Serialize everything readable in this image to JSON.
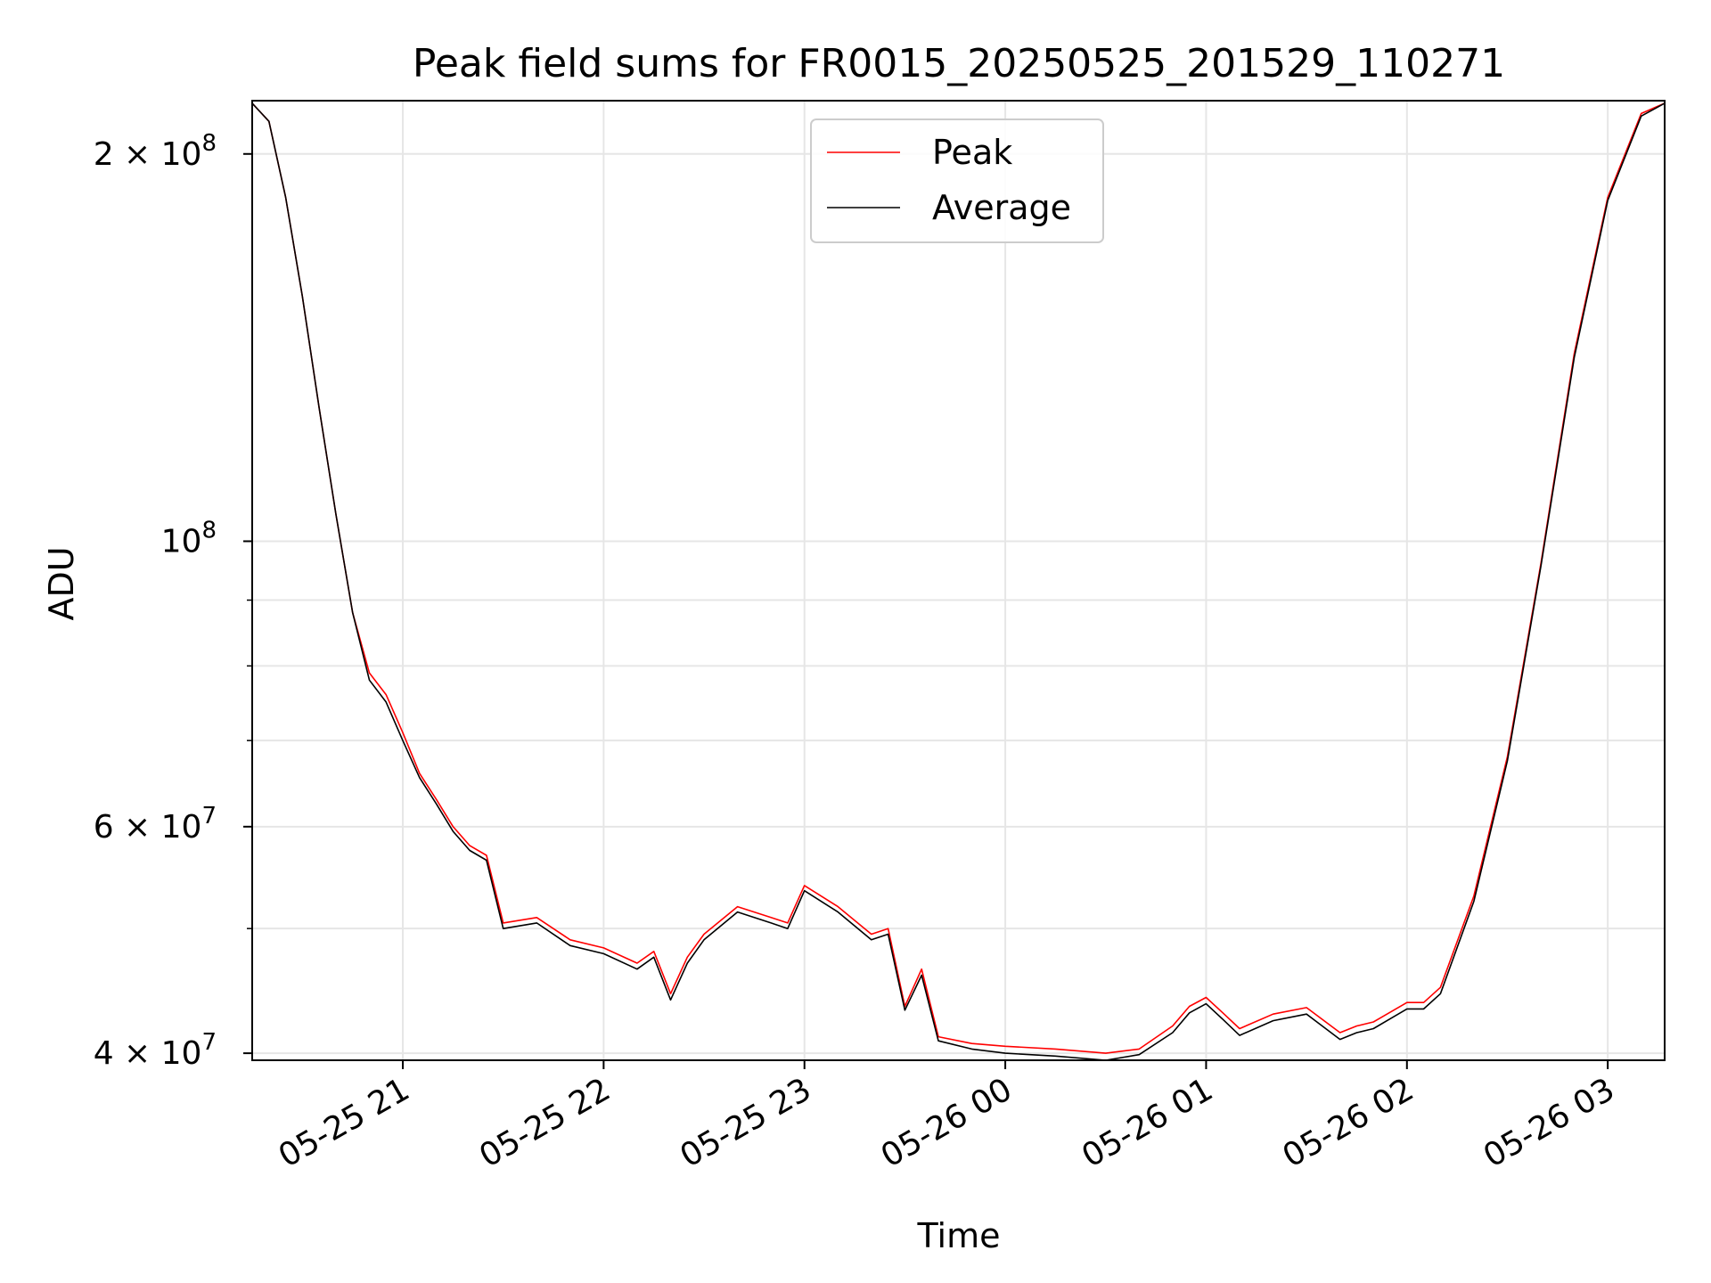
{
  "chart_data": {
    "type": "line",
    "title": "Peak field sums for FR0015_20250525_201529_110271",
    "xlabel": "Time",
    "ylabel": "ADU",
    "yscale": "log",
    "grid": true,
    "legend_position": "top-center",
    "xlim": [
      "2025-05-25T20:15",
      "2025-05-26T03:17"
    ],
    "ylim": [
      39500000,
      220000000
    ],
    "x_ticks": [
      {
        "time": "2025-05-25T21:00",
        "label": "05-25 21"
      },
      {
        "time": "2025-05-25T22:00",
        "label": "05-25 22"
      },
      {
        "time": "2025-05-25T23:00",
        "label": "05-25 23"
      },
      {
        "time": "2025-05-26T00:00",
        "label": "05-26 00"
      },
      {
        "time": "2025-05-26T01:00",
        "label": "05-26 01"
      },
      {
        "time": "2025-05-26T02:00",
        "label": "05-26 02"
      },
      {
        "time": "2025-05-26T03:00",
        "label": "05-26 03"
      }
    ],
    "y_major_ticks": [
      {
        "value": 40000000,
        "base": "4 × 10",
        "exp": "7"
      },
      {
        "value": 60000000,
        "base": "6 × 10",
        "exp": "7"
      },
      {
        "value": 100000000,
        "base": "10",
        "exp": "8"
      },
      {
        "value": 200000000,
        "base": "2 × 10",
        "exp": "8"
      }
    ],
    "y_minor_grid": [
      50000000,
      70000000,
      80000000,
      90000000
    ],
    "series": [
      {
        "name": "Peak",
        "color": "#ff0000",
        "x": [
          "2025-05-25T20:15",
          "2025-05-25T20:20",
          "2025-05-25T20:25",
          "2025-05-25T20:30",
          "2025-05-25T20:35",
          "2025-05-25T20:40",
          "2025-05-25T20:45",
          "2025-05-25T20:50",
          "2025-05-25T20:55",
          "2025-05-25T21:00",
          "2025-05-25T21:05",
          "2025-05-25T21:10",
          "2025-05-25T21:15",
          "2025-05-25T21:20",
          "2025-05-25T21:25",
          "2025-05-25T21:30",
          "2025-05-25T21:40",
          "2025-05-25T21:50",
          "2025-05-25T22:00",
          "2025-05-25T22:10",
          "2025-05-25T22:15",
          "2025-05-25T22:20",
          "2025-05-25T22:25",
          "2025-05-25T22:30",
          "2025-05-25T22:40",
          "2025-05-25T22:50",
          "2025-05-25T22:55",
          "2025-05-25T23:00",
          "2025-05-25T23:10",
          "2025-05-25T23:20",
          "2025-05-25T23:25",
          "2025-05-25T23:30",
          "2025-05-25T23:35",
          "2025-05-25T23:40",
          "2025-05-25T23:50",
          "2025-05-26T00:00",
          "2025-05-26T00:15",
          "2025-05-26T00:30",
          "2025-05-26T00:40",
          "2025-05-26T00:50",
          "2025-05-26T00:55",
          "2025-05-26T01:00",
          "2025-05-26T01:05",
          "2025-05-26T01:10",
          "2025-05-26T01:20",
          "2025-05-26T01:30",
          "2025-05-26T01:40",
          "2025-05-26T01:45",
          "2025-05-26T01:50",
          "2025-05-26T02:00",
          "2025-05-26T02:05",
          "2025-05-26T02:10",
          "2025-05-26T02:20",
          "2025-05-26T02:30",
          "2025-05-26T02:40",
          "2025-05-26T02:50",
          "2025-05-26T03:00",
          "2025-05-26T03:10",
          "2025-05-26T03:17"
        ],
        "y": [
          219000000,
          212000000,
          185000000,
          155000000,
          127000000,
          105000000,
          88000000,
          79000000,
          76000000,
          71000000,
          66000000,
          63000000,
          60000000,
          58000000,
          57000000,
          50500000,
          51000000,
          49000000,
          48300000,
          47000000,
          48000000,
          44500000,
          47500000,
          49500000,
          52000000,
          51000000,
          50500000,
          54000000,
          52000000,
          49500000,
          50000000,
          43500000,
          46500000,
          41200000,
          40700000,
          40500000,
          40300000,
          40000000,
          40300000,
          42000000,
          43500000,
          44200000,
          43000000,
          41800000,
          42900000,
          43400000,
          41500000,
          42000000,
          42300000,
          43800000,
          43800000,
          45000000,
          53000000,
          68000000,
          96000000,
          140000000,
          185000000,
          215000000,
          219000000
        ]
      },
      {
        "name": "Average",
        "color": "#000000",
        "x": [
          "2025-05-25T20:15",
          "2025-05-25T20:20",
          "2025-05-25T20:25",
          "2025-05-25T20:30",
          "2025-05-25T20:35",
          "2025-05-25T20:40",
          "2025-05-25T20:45",
          "2025-05-25T20:50",
          "2025-05-25T20:55",
          "2025-05-25T21:00",
          "2025-05-25T21:05",
          "2025-05-25T21:10",
          "2025-05-25T21:15",
          "2025-05-25T21:20",
          "2025-05-25T21:25",
          "2025-05-25T21:30",
          "2025-05-25T21:40",
          "2025-05-25T21:50",
          "2025-05-25T22:00",
          "2025-05-25T22:10",
          "2025-05-25T22:15",
          "2025-05-25T22:20",
          "2025-05-25T22:25",
          "2025-05-25T22:30",
          "2025-05-25T22:40",
          "2025-05-25T22:50",
          "2025-05-25T22:55",
          "2025-05-25T23:00",
          "2025-05-25T23:10",
          "2025-05-25T23:20",
          "2025-05-25T23:25",
          "2025-05-25T23:30",
          "2025-05-25T23:35",
          "2025-05-25T23:40",
          "2025-05-25T23:50",
          "2025-05-26T00:00",
          "2025-05-26T00:15",
          "2025-05-26T00:30",
          "2025-05-26T00:40",
          "2025-05-26T00:50",
          "2025-05-26T00:55",
          "2025-05-26T01:00",
          "2025-05-26T01:05",
          "2025-05-26T01:10",
          "2025-05-26T01:20",
          "2025-05-26T01:30",
          "2025-05-26T01:40",
          "2025-05-26T01:45",
          "2025-05-26T01:50",
          "2025-05-26T02:00",
          "2025-05-26T02:05",
          "2025-05-26T02:10",
          "2025-05-26T02:20",
          "2025-05-26T02:30",
          "2025-05-26T02:40",
          "2025-05-26T02:50",
          "2025-05-26T03:00",
          "2025-05-26T03:10",
          "2025-05-26T03:17"
        ],
        "y": [
          219000000,
          212000000,
          185000000,
          155000000,
          127000000,
          105000000,
          88000000,
          78000000,
          75000000,
          70000000,
          65500000,
          62500000,
          59500000,
          57500000,
          56500000,
          50000000,
          50500000,
          48500000,
          47800000,
          46500000,
          47500000,
          44000000,
          47000000,
          49000000,
          51500000,
          50500000,
          50000000,
          53500000,
          51500000,
          49000000,
          49500000,
          43200000,
          46000000,
          40900000,
          40300000,
          40000000,
          39800000,
          39500000,
          39900000,
          41500000,
          43000000,
          43700000,
          42500000,
          41300000,
          42400000,
          42900000,
          41000000,
          41500000,
          41800000,
          43300000,
          43300000,
          44500000,
          52500000,
          67500000,
          95500000,
          139000000,
          184000000,
          214000000,
          219000000
        ]
      }
    ]
  }
}
